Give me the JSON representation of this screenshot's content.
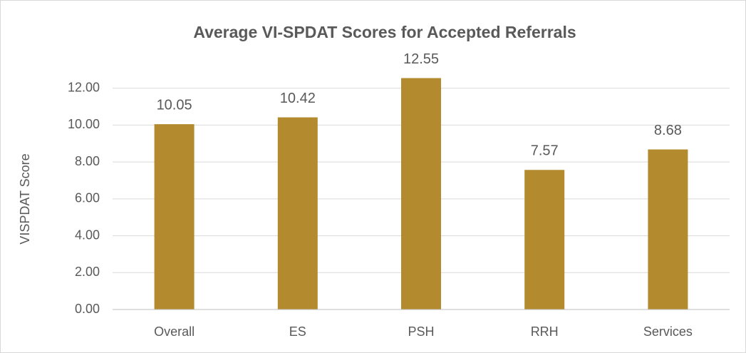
{
  "chart_data": {
    "type": "bar",
    "title": "Average VI-SPDAT Scores for Accepted Referrals",
    "y_label": "VISPDAT Score",
    "categories": [
      "Overall",
      "ES",
      "PSH",
      "RRH",
      "Services"
    ],
    "values": [
      10.05,
      10.42,
      12.55,
      7.57,
      8.68
    ],
    "color": "#b38b2e",
    "ylim": [
      0,
      14
    ],
    "yticks": [
      {
        "value": 0,
        "label": "0.00"
      },
      {
        "value": 2,
        "label": "2.00"
      },
      {
        "value": 4,
        "label": "4.00"
      },
      {
        "value": 6,
        "label": "6.00"
      },
      {
        "value": 8,
        "label": "8.00"
      },
      {
        "value": 10,
        "label": "10.00"
      },
      {
        "value": 12,
        "label": "12.00"
      }
    ],
    "grid": true
  }
}
